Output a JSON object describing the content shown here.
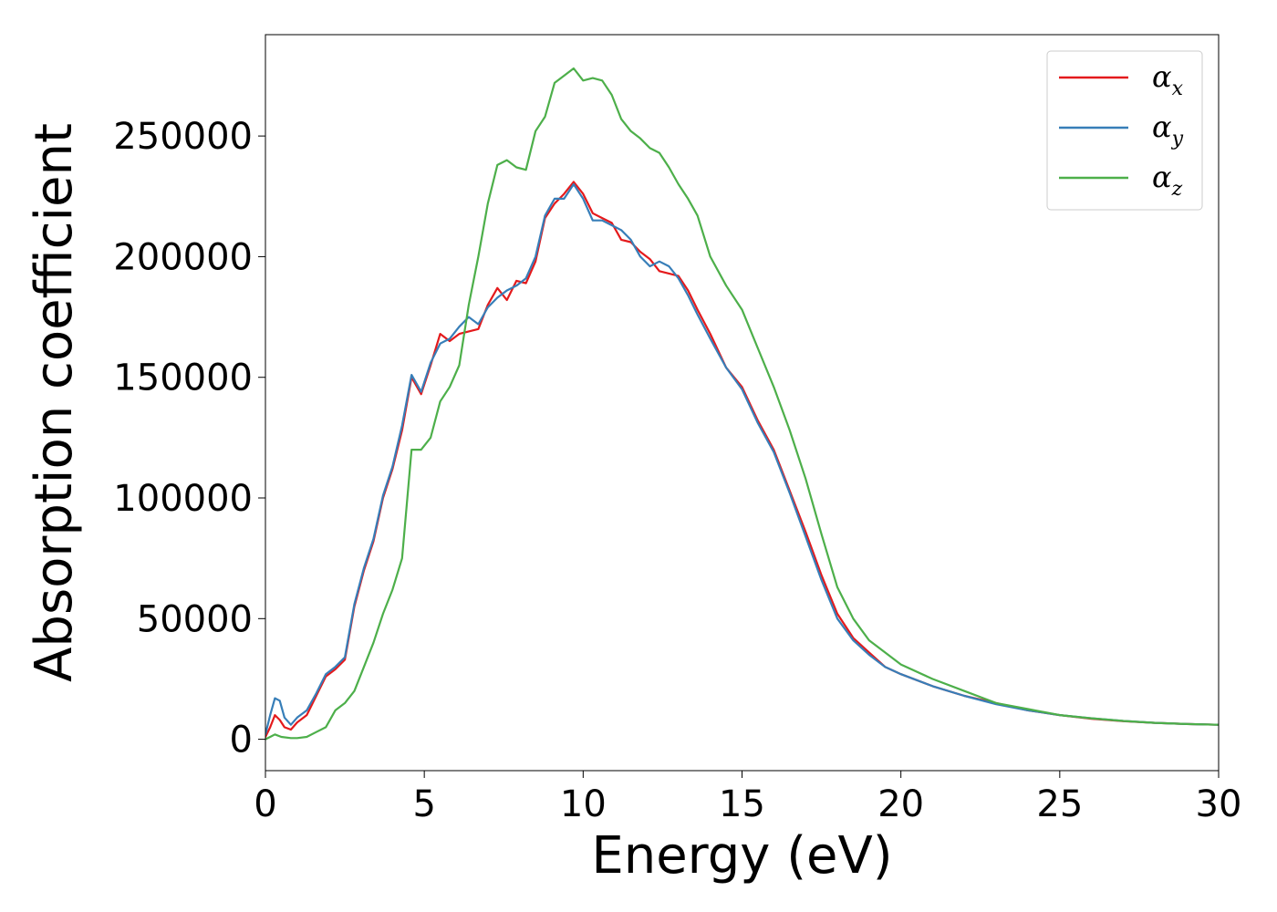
{
  "chart_data": {
    "type": "line",
    "xlabel": "Energy (eV)",
    "ylabel": "Absorption coefficient",
    "xlim": [
      0,
      30
    ],
    "ylim": [
      -13000,
      292000
    ],
    "xticks": [
      0,
      5,
      10,
      15,
      20,
      25,
      30
    ],
    "yticks": [
      0,
      50000,
      100000,
      150000,
      200000,
      250000
    ],
    "xtick_labels": [
      "0",
      "5",
      "10",
      "15",
      "20",
      "25",
      "30"
    ],
    "ytick_labels": [
      "0",
      "50000",
      "100000",
      "150000",
      "200000",
      "250000"
    ],
    "grid": false,
    "legend_position": "top-right",
    "series": [
      {
        "name": "α",
        "subscript": "x",
        "color": "#e41a1c",
        "points": [
          [
            0,
            1000
          ],
          [
            0.15,
            5000
          ],
          [
            0.3,
            10000
          ],
          [
            0.45,
            8000
          ],
          [
            0.6,
            5000
          ],
          [
            0.8,
            4000
          ],
          [
            1,
            7000
          ],
          [
            1.3,
            10000
          ],
          [
            1.6,
            18000
          ],
          [
            1.9,
            26000
          ],
          [
            2.2,
            29000
          ],
          [
            2.5,
            33000
          ],
          [
            2.8,
            55000
          ],
          [
            3.1,
            70000
          ],
          [
            3.4,
            82000
          ],
          [
            3.7,
            100000
          ],
          [
            4,
            112000
          ],
          [
            4.3,
            128000
          ],
          [
            4.6,
            150000
          ],
          [
            4.9,
            143000
          ],
          [
            5.2,
            155000
          ],
          [
            5.5,
            168000
          ],
          [
            5.8,
            165000
          ],
          [
            6.1,
            168000
          ],
          [
            6.4,
            169000
          ],
          [
            6.7,
            170000
          ],
          [
            7,
            180000
          ],
          [
            7.3,
            187000
          ],
          [
            7.6,
            182000
          ],
          [
            7.9,
            190000
          ],
          [
            8.2,
            189000
          ],
          [
            8.5,
            198000
          ],
          [
            8.8,
            216000
          ],
          [
            9.1,
            222000
          ],
          [
            9.4,
            226000
          ],
          [
            9.7,
            231000
          ],
          [
            10,
            226000
          ],
          [
            10.3,
            218000
          ],
          [
            10.6,
            216000
          ],
          [
            10.9,
            214000
          ],
          [
            11.2,
            207000
          ],
          [
            11.5,
            206000
          ],
          [
            11.8,
            202000
          ],
          [
            12.1,
            199000
          ],
          [
            12.4,
            194000
          ],
          [
            12.7,
            193000
          ],
          [
            13,
            192000
          ],
          [
            13.3,
            186000
          ],
          [
            13.6,
            178000
          ],
          [
            14,
            168000
          ],
          [
            14.5,
            154000
          ],
          [
            15,
            146000
          ],
          [
            15.5,
            132000
          ],
          [
            16,
            120000
          ],
          [
            16.5,
            103000
          ],
          [
            17,
            86000
          ],
          [
            17.5,
            68000
          ],
          [
            18,
            52000
          ],
          [
            18.5,
            42000
          ],
          [
            19,
            36000
          ],
          [
            19.5,
            30000
          ],
          [
            20,
            27000
          ],
          [
            21,
            22000
          ],
          [
            22,
            18000
          ],
          [
            23,
            15000
          ],
          [
            24,
            12000
          ],
          [
            25,
            10000
          ],
          [
            26,
            8500
          ],
          [
            27,
            7500
          ],
          [
            28,
            6800
          ],
          [
            29,
            6300
          ],
          [
            30,
            6000
          ]
        ]
      },
      {
        "name": "α",
        "subscript": "y",
        "color": "#377eb8",
        "points": [
          [
            0,
            2000
          ],
          [
            0.15,
            10000
          ],
          [
            0.3,
            17000
          ],
          [
            0.45,
            16000
          ],
          [
            0.6,
            9000
          ],
          [
            0.8,
            6000
          ],
          [
            1,
            9000
          ],
          [
            1.3,
            12000
          ],
          [
            1.6,
            19000
          ],
          [
            1.9,
            27000
          ],
          [
            2.2,
            30000
          ],
          [
            2.5,
            34000
          ],
          [
            2.8,
            56000
          ],
          [
            3.1,
            71000
          ],
          [
            3.4,
            83000
          ],
          [
            3.7,
            101000
          ],
          [
            4,
            113000
          ],
          [
            4.3,
            130000
          ],
          [
            4.6,
            151000
          ],
          [
            4.9,
            144000
          ],
          [
            5.2,
            156000
          ],
          [
            5.5,
            164000
          ],
          [
            5.8,
            166000
          ],
          [
            6.1,
            171000
          ],
          [
            6.4,
            175000
          ],
          [
            6.7,
            172000
          ],
          [
            7,
            179000
          ],
          [
            7.3,
            183000
          ],
          [
            7.6,
            186000
          ],
          [
            7.9,
            188000
          ],
          [
            8.2,
            191000
          ],
          [
            8.5,
            200000
          ],
          [
            8.8,
            217000
          ],
          [
            9.1,
            224000
          ],
          [
            9.4,
            224000
          ],
          [
            9.7,
            230000
          ],
          [
            10,
            224000
          ],
          [
            10.3,
            215000
          ],
          [
            10.6,
            215000
          ],
          [
            10.9,
            213000
          ],
          [
            11.2,
            211000
          ],
          [
            11.5,
            207000
          ],
          [
            11.8,
            200000
          ],
          [
            12.1,
            196000
          ],
          [
            12.4,
            198000
          ],
          [
            12.7,
            196000
          ],
          [
            13,
            191000
          ],
          [
            13.3,
            184000
          ],
          [
            13.6,
            176000
          ],
          [
            14,
            166000
          ],
          [
            14.5,
            154000
          ],
          [
            15,
            145000
          ],
          [
            15.5,
            131000
          ],
          [
            16,
            119000
          ],
          [
            16.5,
            102000
          ],
          [
            17,
            84000
          ],
          [
            17.5,
            66000
          ],
          [
            18,
            50000
          ],
          [
            18.5,
            41000
          ],
          [
            19,
            35000
          ],
          [
            19.5,
            30000
          ],
          [
            20,
            27000
          ],
          [
            21,
            22000
          ],
          [
            22,
            18000
          ],
          [
            23,
            14500
          ],
          [
            24,
            12000
          ],
          [
            25,
            10000
          ],
          [
            26,
            8700
          ],
          [
            27,
            7600
          ],
          [
            28,
            6800
          ],
          [
            29,
            6300
          ],
          [
            30,
            6000
          ]
        ]
      },
      {
        "name": "α",
        "subscript": "z",
        "color": "#4daf4a",
        "points": [
          [
            0,
            0
          ],
          [
            0.15,
            1000
          ],
          [
            0.3,
            2000
          ],
          [
            0.5,
            1000
          ],
          [
            0.8,
            500
          ],
          [
            1,
            500
          ],
          [
            1.3,
            1000
          ],
          [
            1.6,
            3000
          ],
          [
            1.9,
            5000
          ],
          [
            2.2,
            12000
          ],
          [
            2.5,
            15000
          ],
          [
            2.8,
            20000
          ],
          [
            3.1,
            30000
          ],
          [
            3.4,
            40000
          ],
          [
            3.7,
            52000
          ],
          [
            4,
            62000
          ],
          [
            4.3,
            75000
          ],
          [
            4.6,
            120000
          ],
          [
            4.9,
            120000
          ],
          [
            5.2,
            125000
          ],
          [
            5.5,
            140000
          ],
          [
            5.8,
            146000
          ],
          [
            6.1,
            155000
          ],
          [
            6.4,
            180000
          ],
          [
            6.7,
            200000
          ],
          [
            7,
            222000
          ],
          [
            7.3,
            238000
          ],
          [
            7.6,
            240000
          ],
          [
            7.9,
            237000
          ],
          [
            8.2,
            236000
          ],
          [
            8.5,
            252000
          ],
          [
            8.8,
            258000
          ],
          [
            9.1,
            272000
          ],
          [
            9.4,
            275000
          ],
          [
            9.7,
            278000
          ],
          [
            10,
            273000
          ],
          [
            10.3,
            274000
          ],
          [
            10.6,
            273000
          ],
          [
            10.9,
            267000
          ],
          [
            11.2,
            257000
          ],
          [
            11.5,
            252000
          ],
          [
            11.8,
            249000
          ],
          [
            12.1,
            245000
          ],
          [
            12.4,
            243000
          ],
          [
            12.7,
            237000
          ],
          [
            13,
            230000
          ],
          [
            13.3,
            224000
          ],
          [
            13.6,
            217000
          ],
          [
            14,
            200000
          ],
          [
            14.5,
            188000
          ],
          [
            15,
            178000
          ],
          [
            15.5,
            162000
          ],
          [
            16,
            146000
          ],
          [
            16.5,
            128000
          ],
          [
            17,
            108000
          ],
          [
            17.5,
            85000
          ],
          [
            18,
            63000
          ],
          [
            18.5,
            50000
          ],
          [
            19,
            41000
          ],
          [
            19.5,
            36000
          ],
          [
            20,
            31000
          ],
          [
            21,
            25000
          ],
          [
            22,
            20000
          ],
          [
            23,
            15000
          ],
          [
            24,
            12500
          ],
          [
            25,
            10000
          ],
          [
            26,
            8700
          ],
          [
            27,
            7600
          ],
          [
            28,
            6800
          ],
          [
            29,
            6300
          ],
          [
            30,
            6000
          ]
        ]
      }
    ]
  }
}
